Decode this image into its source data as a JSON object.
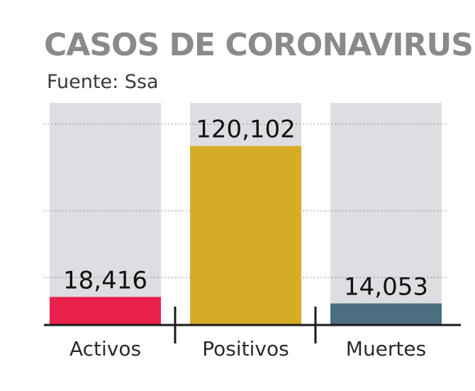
{
  "chart_data": {
    "type": "bar",
    "title": "CASOS DE CORONAVIRUS",
    "subtitle": "Fuente: Ssa",
    "categories": [
      "Activos",
      "Positivos",
      "Muertes"
    ],
    "values": [
      18416,
      120102,
      14053
    ],
    "value_labels": [
      "18,416",
      "120,102",
      "14,053"
    ],
    "colors": [
      "#e8204a",
      "#d6ac27",
      "#4b6e80"
    ],
    "background_color": "#dcdee1",
    "axis_color": "#1a1a1a",
    "grid": "dotted",
    "xlabel": "",
    "ylabel": ""
  }
}
